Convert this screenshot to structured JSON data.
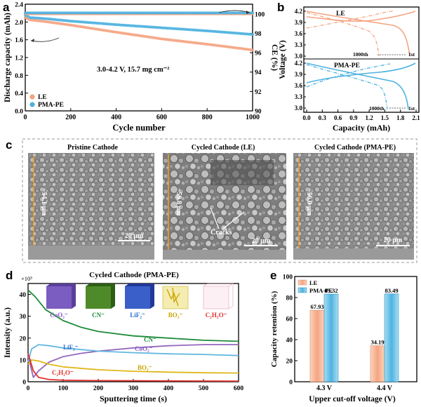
{
  "panel_letters": [
    "a",
    "b",
    "c",
    "d",
    "e"
  ],
  "colors": {
    "le": "#f4a582",
    "pma": "#4fb3e0",
    "green": "#1e8c3a",
    "purple": "#9467bd",
    "yellow": "#d4b21a",
    "red": "#e0302c",
    "lightblue": "#62b8e0"
  },
  "chart_data": [
    {
      "id": "a",
      "type": "scatter",
      "xlabel": "Cycle number",
      "ylabel": "Discharge capacity (mAh)",
      "y2label": "CE (%)",
      "xlim": [
        0,
        1000
      ],
      "ylim": [
        0,
        2.4
      ],
      "y2lim": [
        90,
        101
      ],
      "xticks": [
        "0",
        "200",
        "400",
        "600",
        "800",
        "1000"
      ],
      "yticks": [
        "0.0",
        "0.4",
        "0.8",
        "1.2",
        "1.6",
        "2.0",
        "2.4"
      ],
      "y2ticks": [
        "90",
        "92",
        "94",
        "96",
        "98",
        "100"
      ],
      "annotation": "3.0-4.2 V, 15.7 mg cm⁻²",
      "legend": [
        "LE",
        "PMA-PE"
      ],
      "series": [
        {
          "name": "LE",
          "x": [
            0,
            20,
            100,
            200,
            400,
            600,
            800,
            1000
          ],
          "y": [
            2.1,
            2.05,
            2.0,
            1.93,
            1.77,
            1.62,
            1.5,
            1.37
          ]
        },
        {
          "name": "PMA-PE",
          "x": [
            0,
            20,
            100,
            200,
            400,
            600,
            800,
            1000
          ],
          "y": [
            2.16,
            2.1,
            2.07,
            2.02,
            1.94,
            1.87,
            1.8,
            1.72
          ]
        },
        {
          "name": "LE CE",
          "x": [
            0,
            1000
          ],
          "y": [
            100.0,
            100.0
          ]
        },
        {
          "name": "PMA-PE CE",
          "x": [
            0,
            1000
          ],
          "y": [
            100.1,
            100.1
          ]
        }
      ]
    },
    {
      "id": "b",
      "type": "line",
      "xlabel": "Capacity (mAh)",
      "ylabel": "Voltage (V)",
      "xticks": [
        "0.0",
        "0.3",
        "0.6",
        "0.9",
        "1.2",
        "1.5",
        "1.8",
        "2.1"
      ],
      "top_yticks": [
        "4.2",
        "3.9",
        "3.6",
        "3.3",
        "3.0"
      ],
      "bottom_yticks": [
        "4.2",
        "3.9",
        "3.6",
        "3.3",
        "3.0"
      ],
      "top_label": "LE",
      "bottom_label": "PMA-PE",
      "top_cycle_labels": [
        "1000th",
        "1st"
      ],
      "bottom_cycle_labels": [
        "1000th",
        "1st"
      ]
    },
    {
      "id": "d",
      "type": "line",
      "title": "Cycled Cathode (PMA-PE)",
      "xlabel": "Sputtering time (s)",
      "ylabel": "Intensity (a.u.)",
      "multiplier": "×10³",
      "xlim": [
        0,
        600
      ],
      "ylim": [
        0,
        45
      ],
      "xticks": [
        "0",
        "100",
        "200",
        "300",
        "400",
        "500",
        "600"
      ],
      "yticks": [
        "0",
        "10",
        "20",
        "30",
        "40"
      ],
      "series": [
        {
          "name": "CN⁻",
          "x": [
            0,
            20,
            50,
            100,
            150,
            200,
            300,
            400,
            500,
            600
          ],
          "y": [
            42,
            39,
            33,
            28,
            25,
            23,
            21,
            20,
            19,
            18.5
          ]
        },
        {
          "name": "CoO₂⁻",
          "x": [
            0,
            15,
            30,
            60,
            100,
            150,
            200,
            300,
            400,
            500,
            600
          ],
          "y": [
            12,
            2,
            5,
            9,
            11.5,
            13,
            14,
            15.5,
            16.5,
            17,
            17
          ]
        },
        {
          "name": "LiF₂⁻",
          "x": [
            0,
            10,
            30,
            60,
            100,
            200,
            300,
            400,
            500,
            600
          ],
          "y": [
            9,
            15,
            17,
            16.5,
            15.5,
            14,
            13.3,
            12.8,
            12.5,
            12
          ]
        },
        {
          "name": "BO₂⁻",
          "x": [
            0,
            10,
            30,
            60,
            100,
            200,
            300,
            400,
            500,
            600
          ],
          "y": [
            8,
            10,
            9.5,
            8,
            6.8,
            5.5,
            4.8,
            4.4,
            4.1,
            4.0
          ]
        },
        {
          "name": "C₂H₂O⁻",
          "x": [
            0,
            15,
            30,
            60,
            100,
            200,
            400,
            600
          ],
          "y": [
            13,
            5,
            2,
            1,
            0.7,
            0.5,
            0.4,
            0.3
          ]
        }
      ],
      "inset_labels": [
        "CoO₂⁻",
        "CN⁻",
        "LiF₂⁻",
        "BO₂⁻",
        "C₂H₂O⁻"
      ]
    },
    {
      "id": "e",
      "type": "bar",
      "xlabel": "Upper cut-off voltage (V)",
      "ylabel": "Capacity retention (%)",
      "categories": [
        "4.3 V",
        "4.4 V"
      ],
      "ylim": [
        0,
        100
      ],
      "yticks": [
        "0",
        "20",
        "40",
        "60",
        "80",
        "100"
      ],
      "series": [
        {
          "name": "LE",
          "values": [
            67.93,
            34.19
          ]
        },
        {
          "name": "PMA-PE",
          "values": [
            83.32,
            83.49
          ]
        }
      ],
      "value_labels": [
        "67.93",
        "83.32",
        "34.19",
        "83.49"
      ]
    }
  ],
  "panel_c": {
    "images": [
      {
        "title": "Pristine Cathode",
        "thickness": "~54.1 μm",
        "scale": "20 μm"
      },
      {
        "title": "Cycled Cathode (LE)",
        "thickness": "~59.8 μm",
        "scale": "20 μm",
        "note": "Cracks"
      },
      {
        "title": "Cycled Cathode (PMA-PE)",
        "thickness": "~56.0 μm",
        "scale": "20 μm"
      }
    ]
  }
}
